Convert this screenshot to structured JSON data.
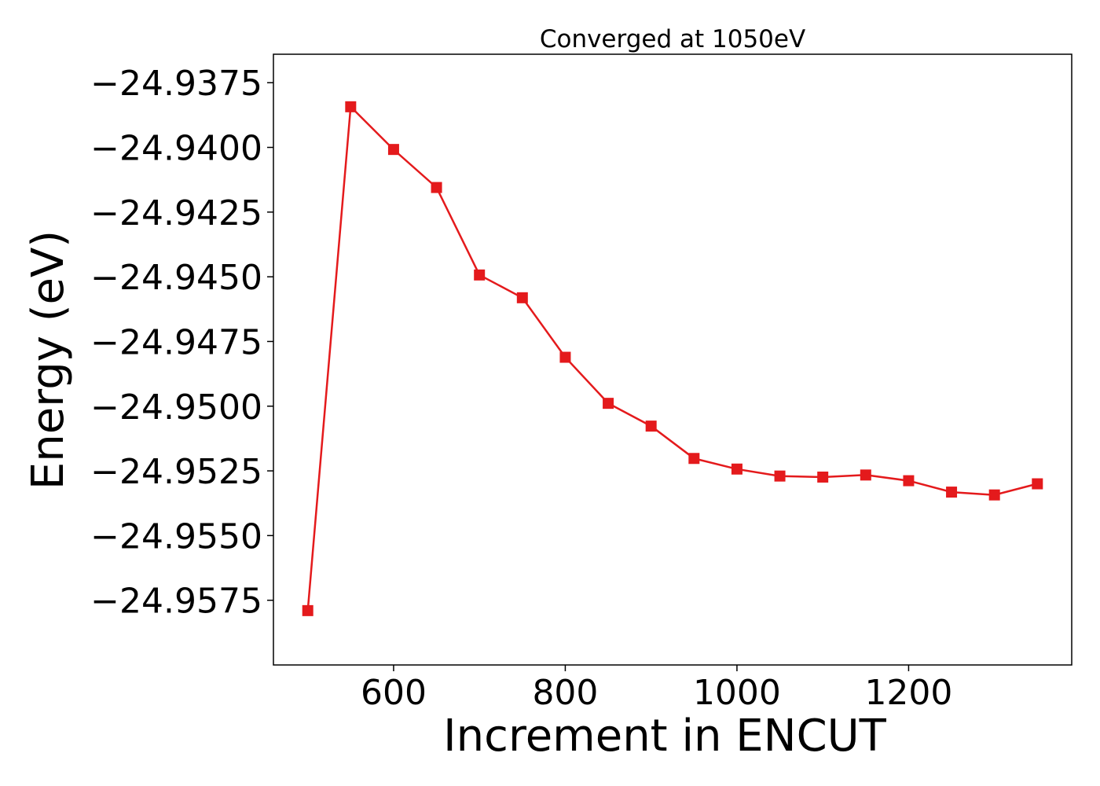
{
  "chart_data": {
    "type": "line",
    "title": "Converged at 1050eV",
    "xlabel": "Increment in ENCUT",
    "ylabel": "Energy (eV)",
    "xlim": [
      460,
      1390
    ],
    "ylim": [
      -24.96,
      -24.9364
    ],
    "xticks": [
      600,
      800,
      1000,
      1200
    ],
    "xtick_labels": [
      "600",
      "800",
      "1000",
      "1200"
    ],
    "yticks": [
      -24.9375,
      -24.94,
      -24.9425,
      -24.945,
      -24.9475,
      -24.95,
      -24.9525,
      -24.955,
      -24.9575
    ],
    "ytick_labels": [
      "−24.9375",
      "−24.9400",
      "−24.9425",
      "−24.9450",
      "−24.9475",
      "−24.9500",
      "−24.9525",
      "−24.9550",
      "−24.9575"
    ],
    "grid": false,
    "colors": {
      "series": "#e41a1c",
      "axes": "#000000"
    },
    "series": [
      {
        "marker": "square",
        "x": [
          500,
          550,
          600,
          650,
          700,
          750,
          800,
          850,
          900,
          950,
          1000,
          1050,
          1100,
          1150,
          1200,
          1250,
          1300,
          1350
        ],
        "values": [
          -24.9579,
          -24.93843,
          -24.94008,
          -24.94155,
          -24.94493,
          -24.94581,
          -24.94811,
          -24.94989,
          -24.95077,
          -24.95202,
          -24.95243,
          -24.9527,
          -24.95274,
          -24.95266,
          -24.95288,
          -24.95332,
          -24.95343,
          -24.953
        ]
      }
    ]
  }
}
